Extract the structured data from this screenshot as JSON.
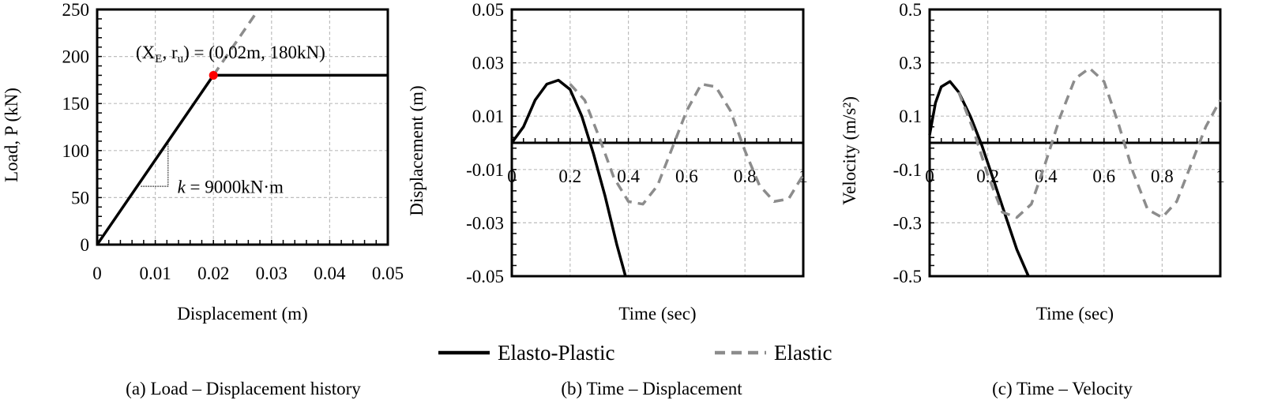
{
  "legend": [
    {
      "label": "Elasto-Plastic",
      "style": "solid",
      "color": "#000000"
    },
    {
      "label": "Elastic",
      "style": "dashed",
      "color": "#8c8c8c"
    }
  ],
  "chart_data": [
    {
      "type": "line",
      "caption": "(a) Load – Displacement history",
      "xlabel": "Displacement (m)",
      "ylabel": "Load, P (kN)",
      "xlim": [
        0,
        0.05
      ],
      "ylim": [
        0,
        250
      ],
      "xticks": [
        0,
        0.01,
        0.02,
        0.03,
        0.04,
        0.05
      ],
      "xtick_labels": [
        "0",
        "0.01",
        "0.02",
        "0.03",
        "0.04",
        "0.05"
      ],
      "yticks": [
        0,
        50,
        100,
        150,
        200,
        250
      ],
      "ytick_labels": [
        "0",
        "50",
        "100",
        "150",
        "200",
        "250"
      ],
      "grid": true,
      "annotations": {
        "yield_label": "(X",
        "yield_sub_e": "E",
        "yield_mid": ", r",
        "yield_sub_u": "u",
        "yield_rest": ") = (0.02m, 180kN)",
        "stiffness_k": "k",
        "stiffness_rest": " = 9000kN·m",
        "yield_point": {
          "x": 0.02,
          "y": 180,
          "color": "#ff0000"
        }
      },
      "series": [
        {
          "name": "Elasto-Plastic",
          "x": [
            0,
            0.02,
            0.05
          ],
          "y": [
            0,
            180,
            180
          ]
        },
        {
          "name": "Elastic",
          "x": [
            0.02,
            0.0272
          ],
          "y": [
            180,
            245
          ]
        }
      ]
    },
    {
      "type": "line",
      "caption": "(b) Time – Displacement",
      "xlabel": "Time (sec)",
      "ylabel": "Displacement (m)",
      "xlim": [
        0,
        1
      ],
      "ylim": [
        -0.05,
        0.05
      ],
      "xticks": [
        0,
        0.2,
        0.4,
        0.6,
        0.8,
        1
      ],
      "xtick_labels": [
        "0",
        "0.2",
        "0.4",
        "0.6",
        "0.8",
        "1"
      ],
      "yticks": [
        -0.05,
        -0.03,
        -0.01,
        0.01,
        0.03,
        0.05
      ],
      "ytick_labels": [
        "-0.05",
        "-0.03",
        "-0.01",
        "0.01",
        "0.03",
        "0.05"
      ],
      "grid": true,
      "series": [
        {
          "name": "Elasto-Plastic",
          "x": [
            0,
            0.04,
            0.08,
            0.12,
            0.16,
            0.2,
            0.24,
            0.28,
            0.32,
            0.36,
            0.39
          ],
          "y": [
            0,
            0.006,
            0.016,
            0.022,
            0.0235,
            0.02,
            0.01,
            -0.004,
            -0.02,
            -0.038,
            -0.05
          ]
        },
        {
          "name": "Elastic",
          "x": [
            0.2,
            0.25,
            0.3,
            0.35,
            0.4,
            0.45,
            0.5,
            0.55,
            0.6,
            0.65,
            0.7,
            0.75,
            0.8,
            0.85,
            0.9,
            0.95,
            1.0
          ],
          "y": [
            0.022,
            0.016,
            0.002,
            -0.013,
            -0.022,
            -0.023,
            -0.016,
            -0.002,
            0.012,
            0.022,
            0.021,
            0.012,
            -0.003,
            -0.016,
            -0.022,
            -0.021,
            -0.012
          ]
        }
      ]
    },
    {
      "type": "line",
      "caption": "(c) Time – Velocity",
      "xlabel": "Time (sec)",
      "ylabel": "Velocity (m/s²)",
      "xlim": [
        0,
        1
      ],
      "ylim": [
        -0.5,
        0.5
      ],
      "xticks": [
        0,
        0.2,
        0.4,
        0.6,
        0.8,
        1
      ],
      "xtick_labels": [
        "0",
        "0.2",
        "0.4",
        "0.6",
        "0.8",
        "1"
      ],
      "yticks": [
        -0.5,
        -0.3,
        -0.1,
        0.1,
        0.3,
        0.5
      ],
      "ytick_labels": [
        "-0.5",
        "-0.3",
        "-0.1",
        "0.1",
        "0.3",
        "0.5"
      ],
      "grid": true,
      "series": [
        {
          "name": "Elasto-Plastic",
          "x": [
            0,
            0.02,
            0.04,
            0.07,
            0.1,
            0.14,
            0.18,
            0.22,
            0.26,
            0.3,
            0.34
          ],
          "y": [
            0.03,
            0.15,
            0.21,
            0.23,
            0.19,
            0.1,
            -0.01,
            -0.14,
            -0.27,
            -0.4,
            -0.5
          ]
        },
        {
          "name": "Elastic",
          "x": [
            0.1,
            0.15,
            0.2,
            0.25,
            0.3,
            0.35,
            0.4,
            0.45,
            0.5,
            0.55,
            0.6,
            0.65,
            0.7,
            0.75,
            0.8,
            0.85,
            0.9,
            0.95,
            1.0
          ],
          "y": [
            0.19,
            0.05,
            -0.12,
            -0.26,
            -0.28,
            -0.23,
            -0.07,
            0.1,
            0.24,
            0.28,
            0.23,
            0.07,
            -0.11,
            -0.25,
            -0.28,
            -0.22,
            -0.08,
            0.06,
            0.16
          ]
        }
      ]
    }
  ]
}
